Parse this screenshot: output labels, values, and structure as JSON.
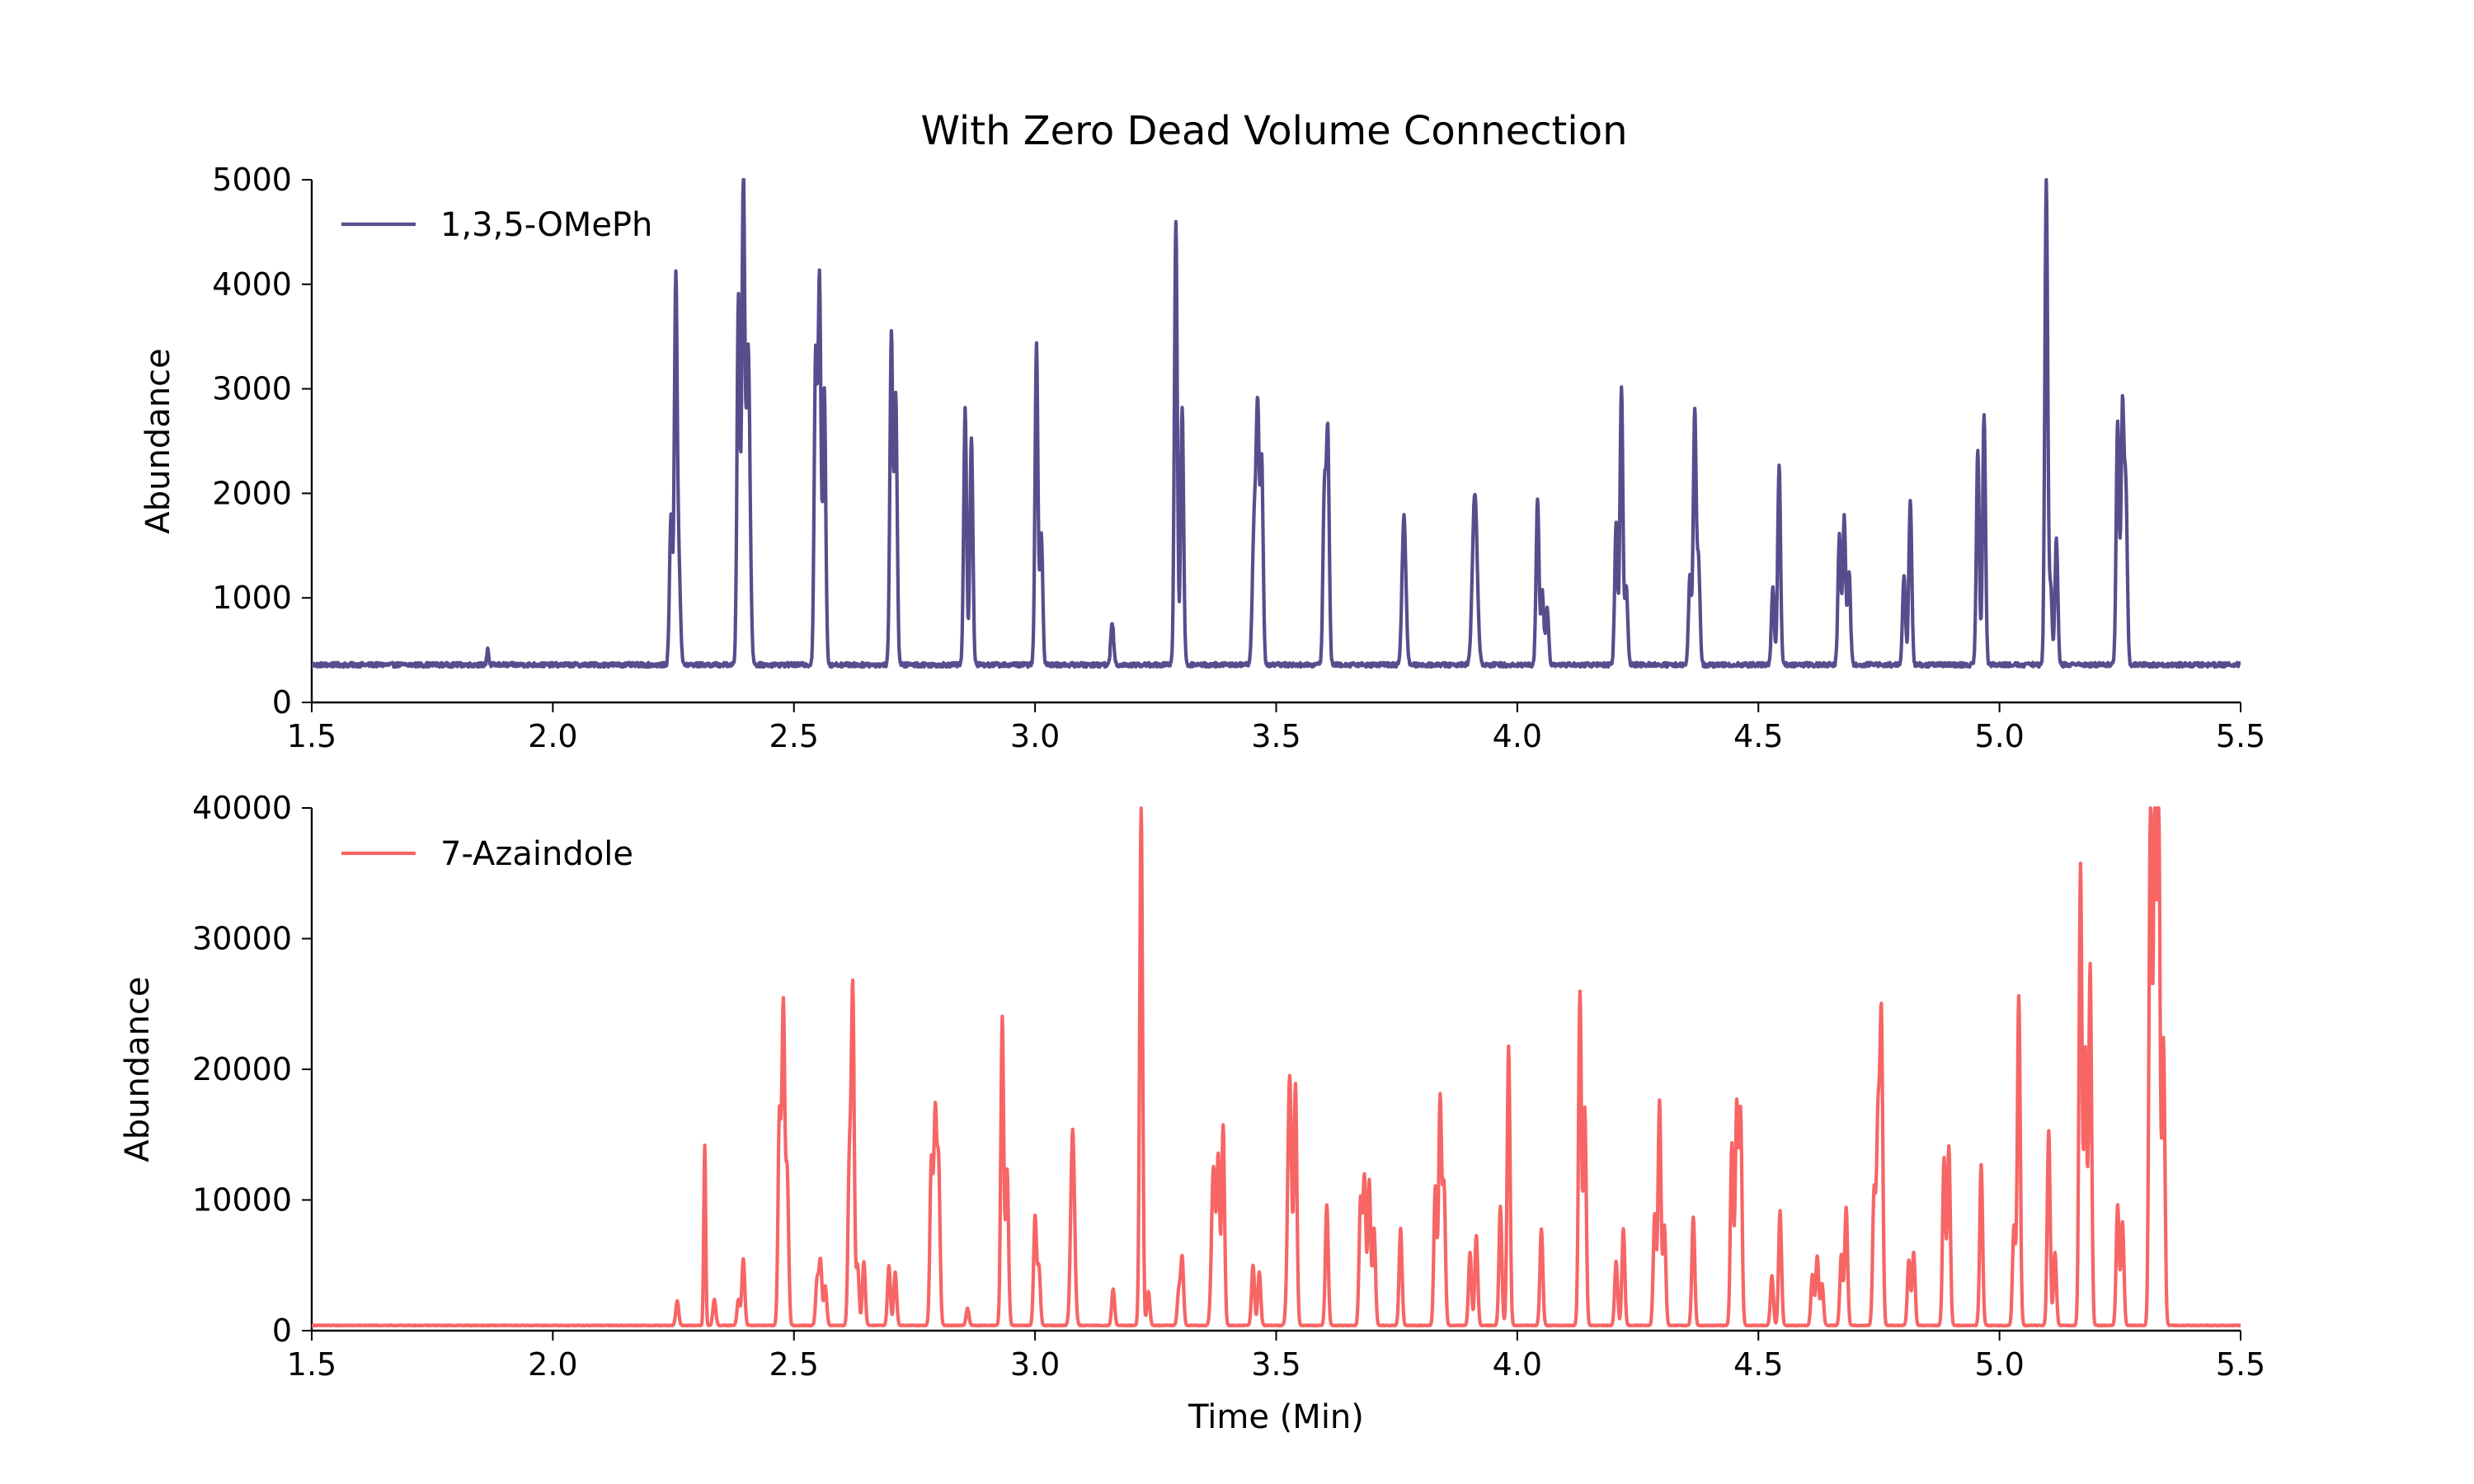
{
  "figure": {
    "title": "With Zero Dead Volume Connection"
  },
  "chart_data": [
    {
      "type": "line",
      "xlabel": "",
      "ylabel": "Abundance",
      "xlim": [
        1.5,
        5.5
      ],
      "ylim": [
        0,
        5000
      ],
      "xticks": [
        1.5,
        2.0,
        2.5,
        3.0,
        3.5,
        4.0,
        4.5,
        5.0,
        5.5
      ],
      "xtick_labels": [
        "1.5",
        "2.0",
        "2.5",
        "3.0",
        "3.5",
        "4.0",
        "4.5",
        "5.0",
        "5.5"
      ],
      "yticks": [
        0,
        1000,
        2000,
        3000,
        4000,
        5000
      ],
      "ytick_labels": [
        "0",
        "1000",
        "2000",
        "3000",
        "4000",
        "5000"
      ],
      "legend_position": "top-left",
      "grid": false,
      "series": [
        {
          "name": "1,3,5-OMePh",
          "color": "#564e8c",
          "baseline": 360,
          "peaks": [
            [
              1.865,
              520,
              0.002
            ],
            [
              2.245,
              1800,
              0.003
            ],
            [
              2.255,
              4050,
              0.003
            ],
            [
              2.262,
              1200,
              0.003
            ],
            [
              2.385,
              3900,
              0.003
            ],
            [
              2.395,
              5000,
              0.003
            ],
            [
              2.405,
              3400,
              0.004
            ],
            [
              2.545,
              3300,
              0.003
            ],
            [
              2.553,
              4030,
              0.003
            ],
            [
              2.563,
              2980,
              0.003
            ],
            [
              2.702,
              3520,
              0.003
            ],
            [
              2.711,
              2950,
              0.003
            ],
            [
              2.855,
              2800,
              0.003
            ],
            [
              2.868,
              2550,
              0.003
            ],
            [
              3.003,
              3420,
              0.003
            ],
            [
              3.013,
              1600,
              0.003
            ],
            [
              3.16,
              760,
              0.003
            ],
            [
              3.292,
              4600,
              0.003
            ],
            [
              3.305,
              2840,
              0.003
            ],
            [
              3.455,
              1800,
              0.004
            ],
            [
              3.462,
              2550,
              0.003
            ],
            [
              3.47,
              2300,
              0.003
            ],
            [
              3.6,
              2000,
              0.003
            ],
            [
              3.607,
              2550,
              0.003
            ],
            [
              3.765,
              1780,
              0.004
            ],
            [
              3.912,
              2000,
              0.005
            ],
            [
              4.042,
              1950,
              0.003
            ],
            [
              4.052,
              1050,
              0.003
            ],
            [
              4.062,
              900,
              0.003
            ],
            [
              4.205,
              1700,
              0.003
            ],
            [
              4.216,
              3020,
              0.003
            ],
            [
              4.226,
              1100,
              0.003
            ],
            [
              4.358,
              1200,
              0.003
            ],
            [
              4.368,
              2800,
              0.003
            ],
            [
              4.376,
              1330,
              0.003
            ],
            [
              4.53,
              1100,
              0.003
            ],
            [
              4.543,
              2260,
              0.003
            ],
            [
              4.668,
              1600,
              0.003
            ],
            [
              4.678,
              1780,
              0.003
            ],
            [
              4.688,
              1250,
              0.003
            ],
            [
              4.802,
              1220,
              0.003
            ],
            [
              4.815,
              1950,
              0.003
            ],
            [
              4.955,
              2430,
              0.003
            ],
            [
              4.968,
              2750,
              0.003
            ],
            [
              5.097,
              5000,
              0.003
            ],
            [
              5.106,
              1100,
              0.003
            ],
            [
              5.118,
              1560,
              0.003
            ],
            [
              5.245,
              2700,
              0.003
            ],
            [
              5.255,
              2800,
              0.003
            ],
            [
              5.262,
              2000,
              0.003
            ]
          ]
        }
      ]
    },
    {
      "type": "line",
      "xlabel": "Time (Min)",
      "ylabel": "Abundance",
      "xlim": [
        1.5,
        5.5
      ],
      "ylim": [
        0,
        40000
      ],
      "xticks": [
        1.5,
        2.0,
        2.5,
        3.0,
        3.5,
        4.0,
        4.5,
        5.0,
        5.5
      ],
      "xtick_labels": [
        "1.5",
        "2.0",
        "2.5",
        "3.0",
        "3.5",
        "4.0",
        "4.5",
        "5.0",
        "5.5"
      ],
      "yticks": [
        0,
        10000,
        20000,
        30000,
        40000
      ],
      "ytick_labels": [
        "0",
        "10000",
        "20000",
        "30000",
        "40000"
      ],
      "legend_position": "top-left",
      "grid": false,
      "series": [
        {
          "name": "7-Azaindole",
          "color": "#f76565",
          "baseline": 400,
          "peaks": [
            [
              2.258,
              2300,
              0.003
            ],
            [
              2.315,
              14200,
              0.002
            ],
            [
              2.335,
              2400,
              0.003
            ],
            [
              2.385,
              2400,
              0.003
            ],
            [
              2.395,
              5500,
              0.003
            ],
            [
              2.47,
              16500,
              0.003
            ],
            [
              2.478,
              24700,
              0.003
            ],
            [
              2.486,
              12000,
              0.003
            ],
            [
              2.548,
              3800,
              0.003
            ],
            [
              2.555,
              5300,
              0.003
            ],
            [
              2.565,
              3400,
              0.003
            ],
            [
              2.615,
              12800,
              0.003
            ],
            [
              2.622,
              26000,
              0.003
            ],
            [
              2.632,
              5000,
              0.003
            ],
            [
              2.645,
              5300,
              0.003
            ],
            [
              2.697,
              5000,
              0.003
            ],
            [
              2.71,
              4500,
              0.003
            ],
            [
              2.785,
              13000,
              0.003
            ],
            [
              2.793,
              16300,
              0.003
            ],
            [
              2.8,
              12500,
              0.003
            ],
            [
              2.86,
              1700,
              0.003
            ],
            [
              2.932,
              24000,
              0.003
            ],
            [
              2.942,
              12300,
              0.003
            ],
            [
              3.0,
              8700,
              0.003
            ],
            [
              3.008,
              4800,
              0.003
            ],
            [
              3.078,
              15400,
              0.004
            ],
            [
              3.162,
              3200,
              0.003
            ],
            [
              3.22,
              40000,
              0.003
            ],
            [
              3.235,
              3000,
              0.003
            ],
            [
              3.298,
              3000,
              0.003
            ],
            [
              3.305,
              5600,
              0.003
            ],
            [
              3.37,
              12500,
              0.004
            ],
            [
              3.38,
              13000,
              0.003
            ],
            [
              3.39,
              15700,
              0.003
            ],
            [
              3.452,
              5000,
              0.003
            ],
            [
              3.465,
              4500,
              0.003
            ],
            [
              3.528,
              19500,
              0.004
            ],
            [
              3.54,
              18700,
              0.003
            ],
            [
              3.605,
              9600,
              0.003
            ],
            [
              3.675,
              10000,
              0.003
            ],
            [
              3.683,
              11700,
              0.003
            ],
            [
              3.693,
              11500,
              0.003
            ],
            [
              3.703,
              7800,
              0.003
            ],
            [
              3.758,
              7800,
              0.003
            ],
            [
              3.83,
              11000,
              0.003
            ],
            [
              3.84,
              17800,
              0.003
            ],
            [
              3.848,
              11000,
              0.003
            ],
            [
              3.902,
              6000,
              0.003
            ],
            [
              3.915,
              7300,
              0.003
            ],
            [
              3.965,
              9500,
              0.003
            ],
            [
              3.982,
              21800,
              0.003
            ],
            [
              4.05,
              7800,
              0.003
            ],
            [
              4.13,
              25900,
              0.003
            ],
            [
              4.14,
              17000,
              0.003
            ],
            [
              4.205,
              5300,
              0.003
            ],
            [
              4.22,
              7800,
              0.003
            ],
            [
              4.285,
              8900,
              0.003
            ],
            [
              4.295,
              17600,
              0.003
            ],
            [
              4.305,
              8000,
              0.003
            ],
            [
              4.365,
              8700,
              0.003
            ],
            [
              4.445,
              14300,
              0.003
            ],
            [
              4.455,
              17200,
              0.003
            ],
            [
              4.463,
              16700,
              0.003
            ],
            [
              4.528,
              4200,
              0.003
            ],
            [
              4.545,
              9200,
              0.003
            ],
            [
              4.612,
              4300,
              0.003
            ],
            [
              4.622,
              5700,
              0.003
            ],
            [
              4.632,
              3600,
              0.003
            ],
            [
              4.672,
              5800,
              0.003
            ],
            [
              4.682,
              9400,
              0.003
            ],
            [
              4.74,
              10700,
              0.003
            ],
            [
              4.748,
              16000,
              0.003
            ],
            [
              4.755,
              24000,
              0.003
            ],
            [
              4.812,
              5400,
              0.003
            ],
            [
              4.822,
              6000,
              0.003
            ],
            [
              4.885,
              13200,
              0.003
            ],
            [
              4.895,
              14100,
              0.003
            ],
            [
              4.962,
              12700,
              0.003
            ],
            [
              5.03,
              8000,
              0.003
            ],
            [
              5.04,
              25600,
              0.003
            ],
            [
              5.102,
              15300,
              0.003
            ],
            [
              5.115,
              6000,
              0.003
            ],
            [
              5.168,
              35700,
              0.003
            ],
            [
              5.178,
              21500,
              0.003
            ],
            [
              5.188,
              28000,
              0.003
            ],
            [
              5.245,
              9600,
              0.003
            ],
            [
              5.255,
              8300,
              0.003
            ],
            [
              5.313,
              40000,
              0.003
            ],
            [
              5.322,
              40000,
              0.003
            ],
            [
              5.33,
              40000,
              0.003
            ],
            [
              5.34,
              22300,
              0.003
            ]
          ]
        }
      ]
    }
  ]
}
